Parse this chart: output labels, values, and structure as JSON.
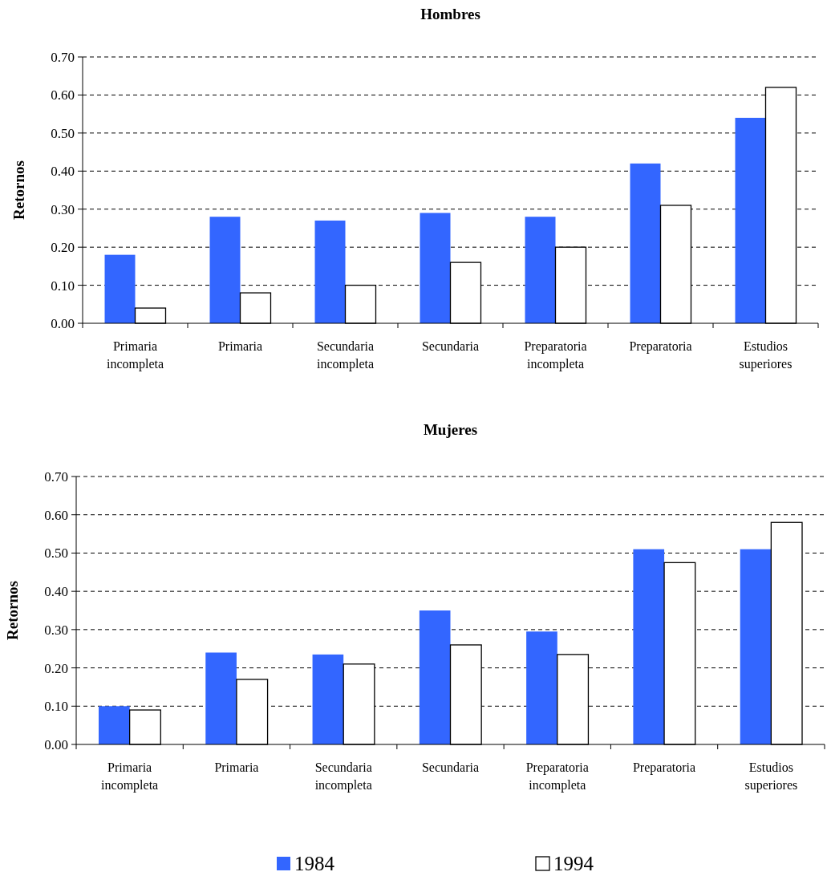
{
  "chart_data": [
    {
      "type": "bar",
      "title": "Hombres",
      "ylabel": "Retornos",
      "categories": [
        "Primaria incompleta",
        "Primaria",
        "Secundaria incompleta",
        "Secundaria",
        "Preparatoria incompleta",
        "Preparatoria",
        "Estudios superiores"
      ],
      "series": [
        {
          "name": "1984",
          "color": "#3366ff",
          "values": [
            0.18,
            0.28,
            0.27,
            0.29,
            0.28,
            0.42,
            0.54
          ]
        },
        {
          "name": "1994",
          "color": "#ffffff",
          "values": [
            0.04,
            0.08,
            0.1,
            0.16,
            0.2,
            0.31,
            0.62
          ]
        }
      ],
      "ylim": [
        0,
        0.7
      ],
      "yticks": [
        {
          "value": 0,
          "label": "0.00"
        },
        {
          "value": 0.1,
          "label": "0.10"
        },
        {
          "value": 0.2,
          "label": "0.20"
        },
        {
          "value": 0.3,
          "label": "0.30"
        },
        {
          "value": 0.4,
          "label": "0.40"
        },
        {
          "value": 0.5,
          "label": "0.50"
        },
        {
          "value": 0.6,
          "label": "0.60"
        },
        {
          "value": 0.7,
          "label": "0.70"
        }
      ],
      "grid": "y",
      "legend": "bottom"
    },
    {
      "type": "bar",
      "title": "Mujeres",
      "ylabel": "Retornos",
      "categories": [
        "Primaria incompleta",
        "Primaria",
        "Secundaria incompleta",
        "Secundaria",
        "Preparatoria incompleta",
        "Preparatoria",
        "Estudios superiores"
      ],
      "series": [
        {
          "color": "#3366ff",
          "values": [
            0.1,
            0.24,
            0.235,
            0.35,
            0.295,
            0.51,
            0.51
          ]
        },
        {
          "color": "#ffffff",
          "values": [
            0.09,
            0.17,
            0.21,
            0.26,
            0.235,
            0.475,
            0.58
          ]
        }
      ],
      "ylim": [
        0,
        0.7
      ],
      "yticks": [
        {
          "value": 0,
          "label": "0.00"
        },
        {
          "value": 0.1,
          "label": "0.10"
        },
        {
          "value": 0.2,
          "label": "0.20"
        },
        {
          "value": 0.3,
          "label": "0.30"
        },
        {
          "value": 0.4,
          "label": "0.40"
        },
        {
          "value": 0.5,
          "label": "0.50"
        },
        {
          "value": 0.6,
          "label": "0.60"
        },
        {
          "value": 0.7,
          "label": "0.70"
        }
      ],
      "grid": "y"
    }
  ]
}
